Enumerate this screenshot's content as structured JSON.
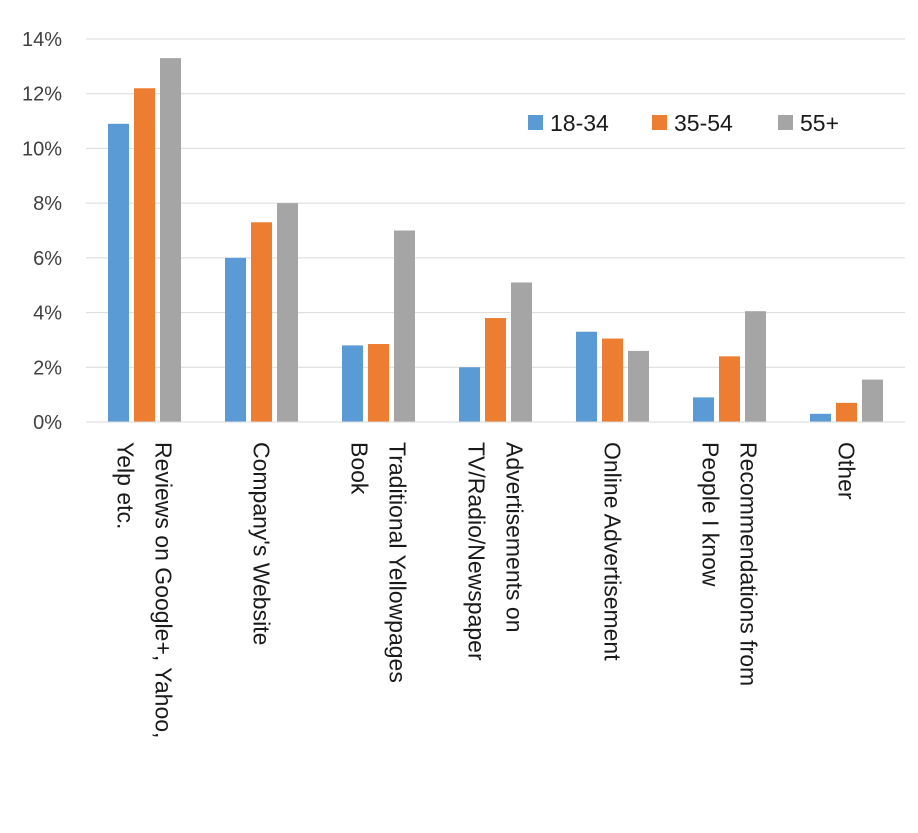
{
  "chart_data": {
    "type": "bar",
    "categories": [
      [
        "Reviews on Google+, Yahoo,",
        "Yelp etc."
      ],
      [
        "Company's Website"
      ],
      [
        "Traditional Yellowpages",
        "Book"
      ],
      [
        "Advertisements on",
        "TV/Radio/Newspaper"
      ],
      [
        "Online Advertisement"
      ],
      [
        "Recommendations from",
        "People I know"
      ],
      [
        "Other"
      ]
    ],
    "series": [
      {
        "name": "18-34",
        "color": "#5b9bd5",
        "values": [
          10.9,
          6.0,
          2.8,
          2.0,
          3.3,
          0.9,
          0.3
        ]
      },
      {
        "name": "35-54",
        "color": "#ed7d31",
        "values": [
          12.2,
          7.3,
          2.85,
          3.8,
          3.05,
          2.4,
          0.7
        ]
      },
      {
        "name": "55+",
        "color": "#a5a5a5",
        "values": [
          13.3,
          8.0,
          7.0,
          5.1,
          2.6,
          4.05,
          1.55
        ]
      }
    ],
    "ylim": [
      0,
      14
    ],
    "yticks": [
      "0%",
      "2%",
      "4%",
      "6%",
      "8%",
      "10%",
      "12%",
      "14%"
    ],
    "grid": true,
    "legend_position": "top-right"
  }
}
